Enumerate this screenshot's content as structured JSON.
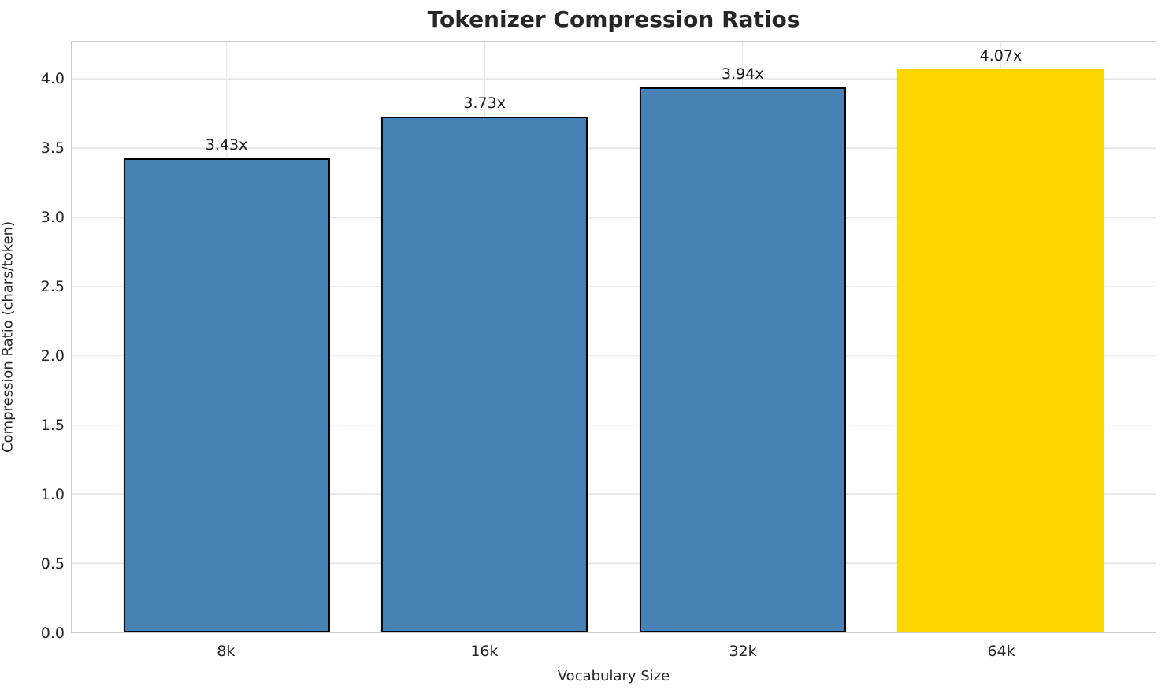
{
  "chart_data": {
    "type": "bar",
    "title": "Tokenizer Compression Ratios",
    "xlabel": "Vocabulary Size",
    "ylabel": "Compression Ratio (chars/token)",
    "categories": [
      "8k",
      "16k",
      "32k",
      "64k"
    ],
    "values": [
      3.43,
      3.73,
      3.94,
      4.07
    ],
    "value_labels": [
      "3.43x",
      "3.73x",
      "3.94x",
      "4.07x"
    ],
    "bar_colors": [
      "#4682B4",
      "#4682B4",
      "#4682B4",
      "#FFD700"
    ],
    "bar_edge_colors": [
      "#000000",
      "#000000",
      "#000000",
      "none"
    ],
    "ylim": [
      0,
      4.27
    ],
    "yticks": [
      0.0,
      0.5,
      1.0,
      1.5,
      2.0,
      2.5,
      3.0,
      3.5,
      4.0
    ],
    "ytick_labels": [
      "0.0",
      "0.5",
      "1.0",
      "1.5",
      "2.0",
      "2.5",
      "3.0",
      "3.5",
      "4.0"
    ],
    "grid": true,
    "legend": "none",
    "highlight_category": "64k",
    "accent_color": "#FFD700",
    "base_color": "#4682B4",
    "grid_color": "#e7e7e7",
    "spine_color": "#cccccc"
  }
}
